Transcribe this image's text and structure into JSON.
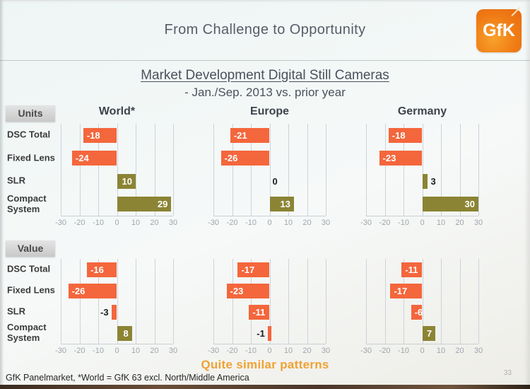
{
  "header": {
    "title": "From Challenge to Opportunity",
    "logo_text": "GfK"
  },
  "slide": {
    "title": "Market Development Digital Still Cameras",
    "subtitle": "- Jan./Sep. 2013 vs. prior year",
    "annotation": "Quite similar patterns",
    "footnote": "GfK Panelmarket,  *World = GfK 63 excl. North/Middle  America",
    "page_number": "33"
  },
  "colors": {
    "negative_bar": "#f4663c",
    "positive_bar": "#8b8434",
    "annotation": "#f0a233",
    "logo_orange": "#f07c15"
  },
  "chart_data": {
    "type": "bar",
    "orientation": "horizontal",
    "categories": [
      "DSC Total",
      "Fixed Lens",
      "SLR",
      "Compact System"
    ],
    "xlim": [
      -30,
      30
    ],
    "xticks": [
      -30,
      -20,
      -10,
      0,
      10,
      20,
      30
    ],
    "grid": true,
    "value_labels": true,
    "groups": [
      {
        "label": "Units",
        "charts": [
          {
            "region": "World*",
            "values": [
              -18,
              -24,
              10,
              29
            ]
          },
          {
            "region": "Europe",
            "values": [
              -21,
              -26,
              0,
              13
            ]
          },
          {
            "region": "Germany",
            "values": [
              -18,
              -23,
              3,
              30
            ]
          }
        ]
      },
      {
        "label": "Value",
        "charts": [
          {
            "region": "World*",
            "values": [
              -16,
              -26,
              -3,
              8
            ]
          },
          {
            "region": "Europe",
            "values": [
              -17,
              -23,
              -11,
              -1
            ]
          },
          {
            "region": "Germany",
            "values": [
              -11,
              -17,
              -6,
              7
            ]
          }
        ]
      }
    ]
  }
}
